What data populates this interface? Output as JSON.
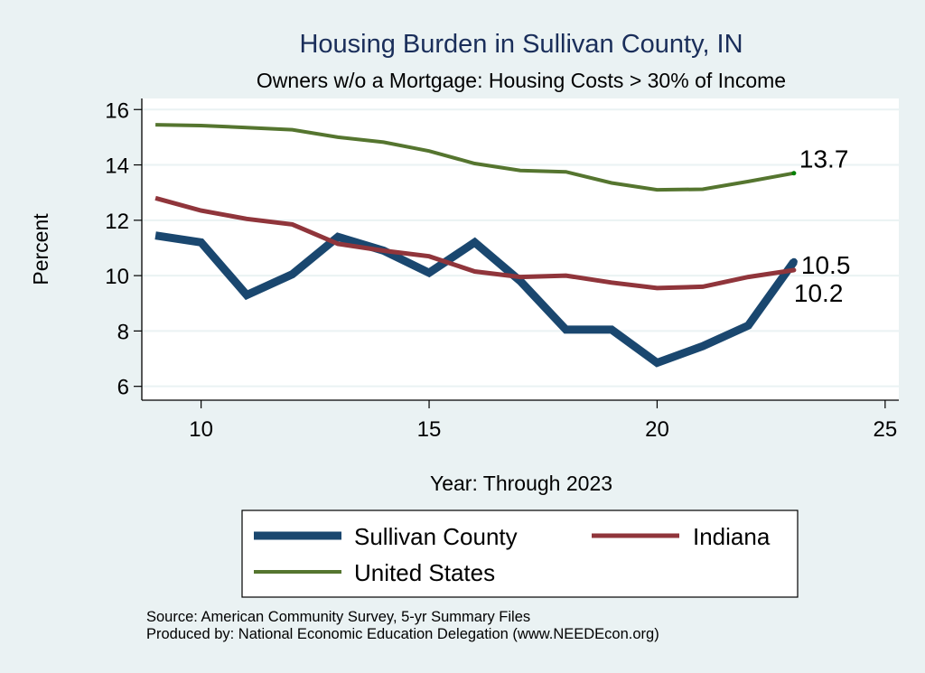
{
  "chart_data": {
    "type": "line",
    "title": "Housing Burden in Sullivan County, IN",
    "subtitle": "Owners w/o a Mortgage: Housing Costs > 30% of Income",
    "xlabel": "Year: Through 2023",
    "ylabel": "Percent",
    "xlim": [
      8.7,
      25.3
    ],
    "ylim": [
      5.5,
      16.4
    ],
    "xticks": [
      10,
      15,
      20,
      25
    ],
    "yticks": [
      6,
      8,
      10,
      12,
      14,
      16
    ],
    "grid": true,
    "x": [
      9,
      10,
      11,
      12,
      13,
      14,
      15,
      16,
      17,
      18,
      19,
      20,
      21,
      22,
      23
    ],
    "series": [
      {
        "name": "Sullivan County",
        "color": "#1a476f",
        "values": [
          11.45,
          11.2,
          9.3,
          10.05,
          11.4,
          10.9,
          10.1,
          11.2,
          9.8,
          8.05,
          8.05,
          6.85,
          7.45,
          8.2,
          10.5
        ],
        "end_label": "10.5"
      },
      {
        "name": "Indiana",
        "color": "#90353b",
        "values": [
          12.8,
          12.35,
          12.05,
          11.85,
          11.15,
          10.9,
          10.7,
          10.15,
          9.95,
          10.0,
          9.75,
          9.55,
          9.6,
          9.95,
          10.2
        ],
        "end_label": "10.2"
      },
      {
        "name": "United States",
        "color": "#55752f",
        "values": [
          15.45,
          15.42,
          15.35,
          15.27,
          15.0,
          14.82,
          14.5,
          14.05,
          13.8,
          13.75,
          13.35,
          13.1,
          13.12,
          13.4,
          13.7
        ],
        "end_label": "13.7"
      }
    ],
    "legend": {
      "placement": "bottom",
      "entries": [
        "Sullivan County",
        "Indiana",
        "United States"
      ]
    },
    "notes": [
      "Source: American Community Survey, 5-yr Summary Files",
      "Produced by: National Economic Education Delegation (www.NEEDEcon.org)"
    ]
  },
  "colors": {
    "background": "#eaf2f3",
    "plot_background": "#ffffff",
    "grid": "#eaf2f3",
    "title": "#1a2e5a",
    "end_marker_us": "#008000"
  }
}
